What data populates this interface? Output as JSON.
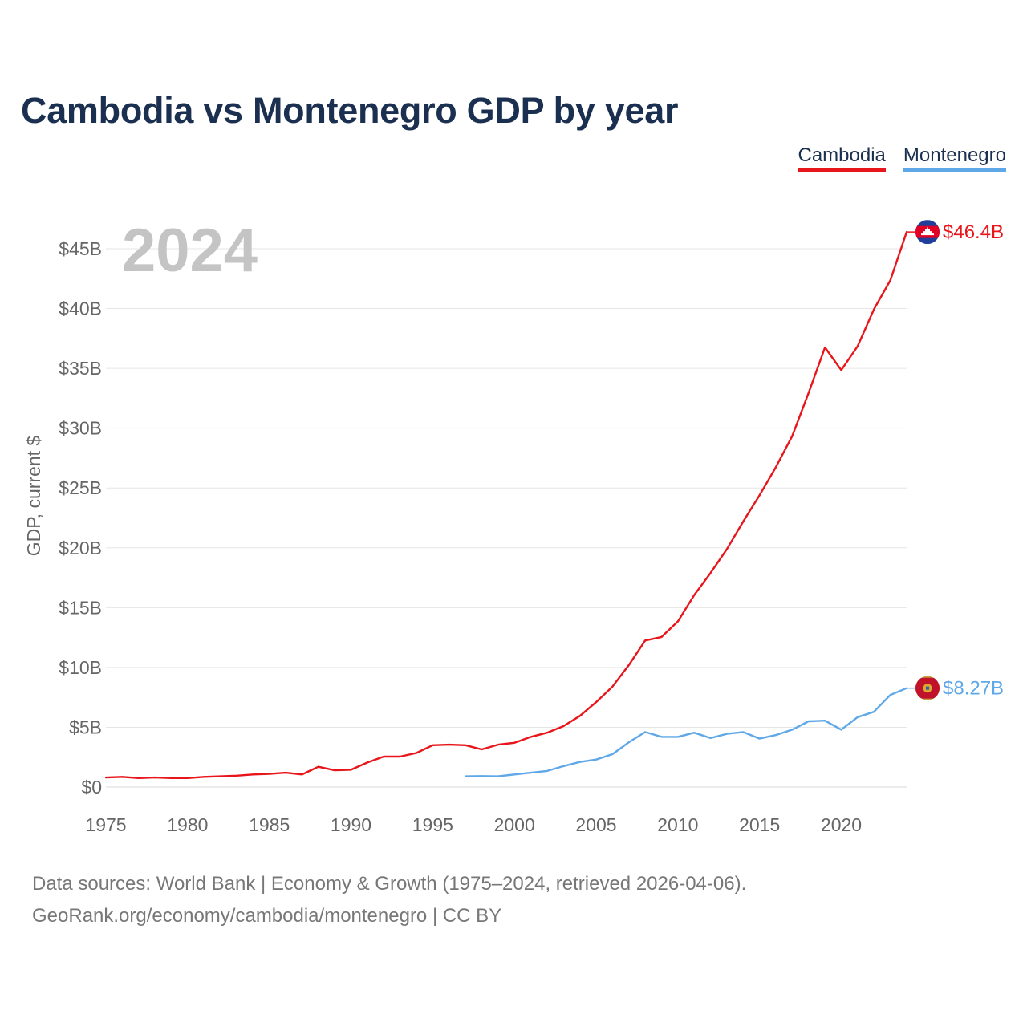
{
  "title": "Cambodia vs Montenegro GDP by year",
  "legend": [
    {
      "label": "Cambodia",
      "color": "#e8151a"
    },
    {
      "label": "Montenegro",
      "color": "#5fa8e8"
    }
  ],
  "footer": {
    "line1": "Data sources: World Bank | Economy & Growth (1975–2024, retrieved 2026-04-06).",
    "line2": "GeoRank.org/economy/cambodia/montenegro | CC BY"
  },
  "chart_data": {
    "type": "line",
    "title": "Cambodia vs Montenegro GDP by year",
    "xlabel": "",
    "ylabel": "GDP, current $",
    "year_watermark": "2024",
    "xlim": [
      1975,
      2024
    ],
    "ylim": [
      0,
      45
    ],
    "y_unit": "billion USD",
    "grid": true,
    "x_ticks": [
      {
        "v": 1975,
        "label": "1975"
      },
      {
        "v": 1980,
        "label": "1980"
      },
      {
        "v": 1985,
        "label": "1985"
      },
      {
        "v": 1990,
        "label": "1990"
      },
      {
        "v": 1995,
        "label": "1995"
      },
      {
        "v": 2000,
        "label": "2000"
      },
      {
        "v": 2005,
        "label": "2005"
      },
      {
        "v": 2010,
        "label": "2010"
      },
      {
        "v": 2015,
        "label": "2015"
      },
      {
        "v": 2020,
        "label": "2020"
      }
    ],
    "y_ticks": [
      {
        "v": 0,
        "label": "$0"
      },
      {
        "v": 5,
        "label": "$5B"
      },
      {
        "v": 10,
        "label": "$10B"
      },
      {
        "v": 15,
        "label": "$15B"
      },
      {
        "v": 20,
        "label": "$20B"
      },
      {
        "v": 25,
        "label": "$25B"
      },
      {
        "v": 30,
        "label": "$30B"
      },
      {
        "v": 35,
        "label": "$35B"
      },
      {
        "v": 40,
        "label": "$40B"
      },
      {
        "v": 45,
        "label": "$45B"
      }
    ],
    "series": [
      {
        "name": "Cambodia",
        "color": "#e8151a",
        "end_label": "$46.4B",
        "flag": "cambodia-flag",
        "x": [
          1975,
          1976,
          1977,
          1978,
          1979,
          1980,
          1981,
          1982,
          1983,
          1984,
          1985,
          1986,
          1987,
          1988,
          1989,
          1990,
          1991,
          1992,
          1993,
          1994,
          1995,
          1996,
          1997,
          1998,
          1999,
          2000,
          2001,
          2002,
          2003,
          2004,
          2005,
          2006,
          2007,
          2008,
          2009,
          2010,
          2011,
          2012,
          2013,
          2014,
          2015,
          2016,
          2017,
          2018,
          2019,
          2020,
          2021,
          2022,
          2023,
          2024
        ],
        "values": [
          0.8,
          0.85,
          0.75,
          0.8,
          0.75,
          0.75,
          0.85,
          0.9,
          0.95,
          1.05,
          1.1,
          1.2,
          1.05,
          1.7,
          1.4,
          1.45,
          2.05,
          2.55,
          2.55,
          2.85,
          3.5,
          3.55,
          3.5,
          3.15,
          3.55,
          3.7,
          4.2,
          4.55,
          5.1,
          5.95,
          7.1,
          8.4,
          10.2,
          12.25,
          12.55,
          13.85,
          16.05,
          17.9,
          19.9,
          22.2,
          24.4,
          26.75,
          29.35,
          32.95,
          36.75,
          34.85,
          36.85,
          39.95,
          42.35,
          46.4
        ]
      },
      {
        "name": "Montenegro",
        "color": "#5fa8e8",
        "end_label": "$8.27B",
        "flag": "montenegro-flag",
        "x": [
          1997,
          1998,
          1999,
          2000,
          2001,
          2002,
          2003,
          2004,
          2005,
          2006,
          2007,
          2008,
          2009,
          2010,
          2011,
          2012,
          2013,
          2014,
          2015,
          2016,
          2017,
          2018,
          2019,
          2020,
          2021,
          2022,
          2023,
          2024
        ],
        "values": [
          0.9,
          0.92,
          0.9,
          1.05,
          1.2,
          1.35,
          1.75,
          2.1,
          2.3,
          2.75,
          3.75,
          4.6,
          4.2,
          4.2,
          4.55,
          4.1,
          4.45,
          4.6,
          4.05,
          4.35,
          4.8,
          5.5,
          5.55,
          4.8,
          5.85,
          6.3,
          7.7,
          8.27
        ]
      }
    ]
  }
}
